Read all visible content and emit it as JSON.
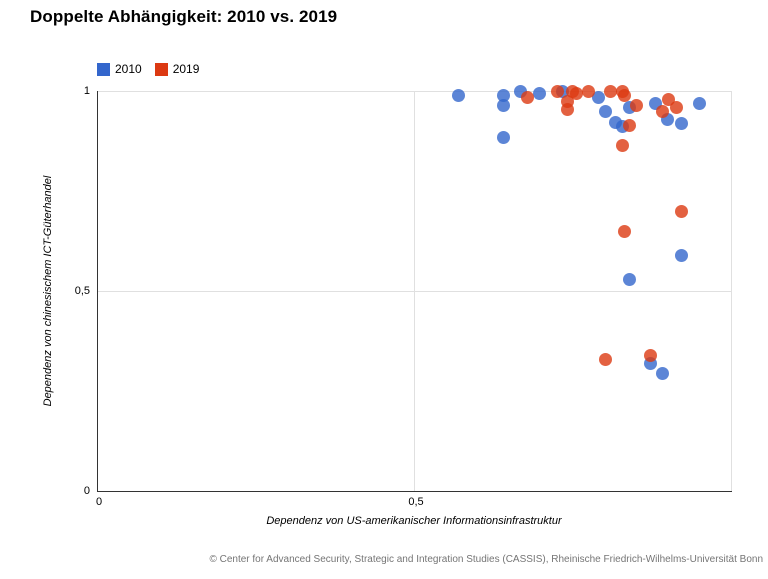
{
  "footer": {
    "text": "© Center for Advanced Security, Strategic and Integration Studies (CASSIS), Rheinische Friedrich-Wilhelms-Universität Bonn"
  },
  "chart_data": {
    "type": "scatter",
    "title": "Doppelte Abhängigkeit: 2010 vs. 2019",
    "xlabel": "Dependenz von US-amerikanischer Informationsinfrastruktur",
    "ylabel": "Dependenz von chinesischem ICT-Güterhandel",
    "xlim": [
      0,
      1
    ],
    "ylim": [
      0,
      1
    ],
    "grid": true,
    "legend_position": "top-left",
    "x_ticks": [
      {
        "value": 0,
        "label": "0"
      },
      {
        "value": 0.5,
        "label": "0,5"
      }
    ],
    "y_ticks": [
      {
        "value": 0,
        "label": "0"
      },
      {
        "value": 0.5,
        "label": "0,5"
      },
      {
        "value": 1,
        "label": "1"
      }
    ],
    "grid_x": [
      0.5,
      1.0
    ],
    "grid_y": [
      0.5,
      1.0
    ],
    "series": [
      {
        "name": "2010",
        "color": "#3366CC",
        "points": [
          [
            0.569,
            0.99
          ],
          [
            0.64,
            0.988
          ],
          [
            0.64,
            0.965
          ],
          [
            0.64,
            0.885
          ],
          [
            0.667,
            1.0
          ],
          [
            0.697,
            0.995
          ],
          [
            0.732,
            1.0
          ],
          [
            0.789,
            0.985
          ],
          [
            0.801,
            0.95
          ],
          [
            0.817,
            0.922
          ],
          [
            0.827,
            0.912
          ],
          [
            0.838,
            0.96
          ],
          [
            0.879,
            0.968
          ],
          [
            0.899,
            0.928
          ],
          [
            0.92,
            0.918
          ],
          [
            0.948,
            0.97
          ],
          [
            0.92,
            0.59
          ],
          [
            0.839,
            0.53
          ],
          [
            0.871,
            0.32
          ],
          [
            0.891,
            0.293
          ]
        ]
      },
      {
        "name": "2019",
        "color": "#DC3912",
        "points": [
          [
            0.677,
            0.985
          ],
          [
            0.724,
            0.998
          ],
          [
            0.74,
            0.973
          ],
          [
            0.741,
            0.953
          ],
          [
            0.748,
            1.0
          ],
          [
            0.755,
            0.993
          ],
          [
            0.773,
            1.0
          ],
          [
            0.809,
            1.0
          ],
          [
            0.828,
            1.0
          ],
          [
            0.83,
            0.988
          ],
          [
            0.849,
            0.965
          ],
          [
            0.839,
            0.915
          ],
          [
            0.828,
            0.863
          ],
          [
            0.9,
            0.98
          ],
          [
            0.891,
            0.95
          ],
          [
            0.912,
            0.958
          ],
          [
            0.92,
            0.7
          ],
          [
            0.83,
            0.65
          ],
          [
            0.8,
            0.33
          ],
          [
            0.871,
            0.34
          ]
        ]
      }
    ]
  }
}
